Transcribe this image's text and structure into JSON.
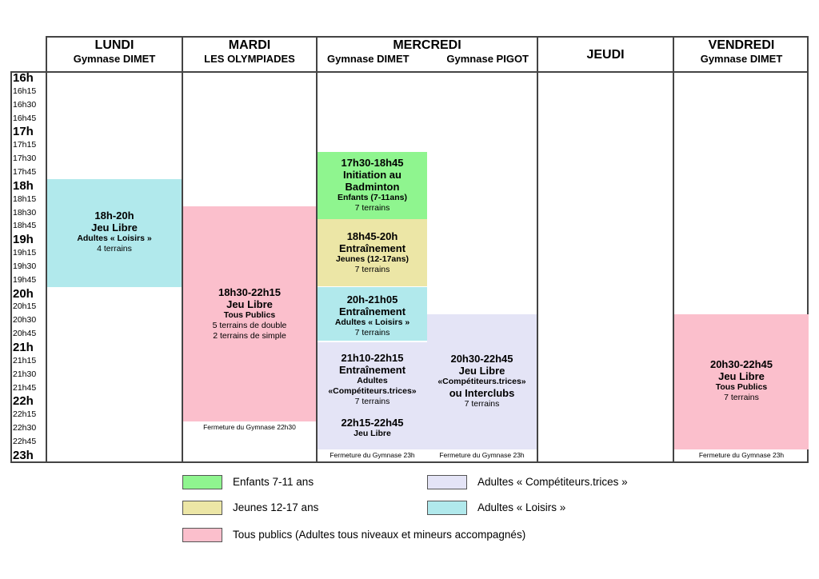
{
  "days": {
    "lundi": {
      "name": "LUNDI",
      "venue": "Gymnase DIMET"
    },
    "mardi": {
      "name": "MARDI",
      "venue": "LES OLYMPIADES"
    },
    "mercredi": {
      "name": "MERCREDI",
      "venue1": "Gymnase DIMET",
      "venue2": "Gymnase PIGOT"
    },
    "jeudi": {
      "name": "JEUDI"
    },
    "vendredi": {
      "name": "VENDREDI",
      "venue": "Gymnase DIMET"
    }
  },
  "times": [
    "16h",
    "16h15",
    "16h30",
    "16h45",
    "17h",
    "17h15",
    "17h30",
    "17h45",
    "18h",
    "18h15",
    "18h30",
    "18h45",
    "19h",
    "19h15",
    "19h30",
    "19h45",
    "20h",
    "20h15",
    "20h30",
    "20h45",
    "21h",
    "21h15",
    "21h30",
    "21h45",
    "22h",
    "22h15",
    "22h30",
    "22h45",
    "23h"
  ],
  "blocks": {
    "lundi": {
      "time": "18h-20h",
      "title": "Jeu Libre",
      "public": "Adultes « Loisirs »",
      "courts": "4 terrains"
    },
    "mardi": {
      "time": "18h30-22h15",
      "title": "Jeu Libre",
      "public": "Tous Publics",
      "courts1": "5 terrains de double",
      "courts2": "2 terrains de simple",
      "closing": "Fermeture du Gymnase 22h30"
    },
    "merc_a": {
      "time": "17h30-18h45",
      "title1": "Initiation au",
      "title2": "Badminton",
      "public": "Enfants (7-11ans)",
      "courts": "7 terrains"
    },
    "merc_b": {
      "time": "18h45-20h",
      "title": "Entraînement",
      "public": "Jeunes (12-17ans)",
      "courts": "7 terrains"
    },
    "merc_c": {
      "time": "20h-21h05",
      "title": "Entraînement",
      "public": "Adultes « Loisirs »",
      "courts": "7 terrains"
    },
    "merc_d": {
      "time": "21h10-22h15",
      "title": "Entraînement",
      "public1": "Adultes",
      "public2": "«Compétiteurs.trices»",
      "courts": "7 terrains"
    },
    "merc_e": {
      "time": "22h15-22h45",
      "title": "Jeu Libre",
      "closing": "Fermeture du Gymnase 23h"
    },
    "merc_pigot": {
      "time": "20h30-22h45",
      "title": "Jeu Libre",
      "public": "«Compétiteurs.trices»",
      "extra": "ou Interclubs",
      "courts": "7 terrains",
      "closing": "Fermeture du Gymnase 23h"
    },
    "vendredi": {
      "time": "20h30-22h45",
      "title": "Jeu Libre",
      "public": "Tous Publics",
      "courts": "7 terrains",
      "closing": "Fermeture du Gymnase 23h"
    }
  },
  "legend": {
    "enfants": "Enfants 7-11 ans",
    "jeunes": "Jeunes 12-17 ans",
    "tous": "Tous publics (Adultes tous niveaux et mineurs accompagnés)",
    "competiteurs": "Adultes « Compétiteurs.trices »",
    "loisirs": "Adultes « Loisirs »"
  },
  "colors": {
    "enfants": "#8ff58f",
    "jeunes": "#ece6a6",
    "tous": "#fbbfcc",
    "competiteurs": "#e4e4f6",
    "loisirs": "#b1e9ec"
  }
}
